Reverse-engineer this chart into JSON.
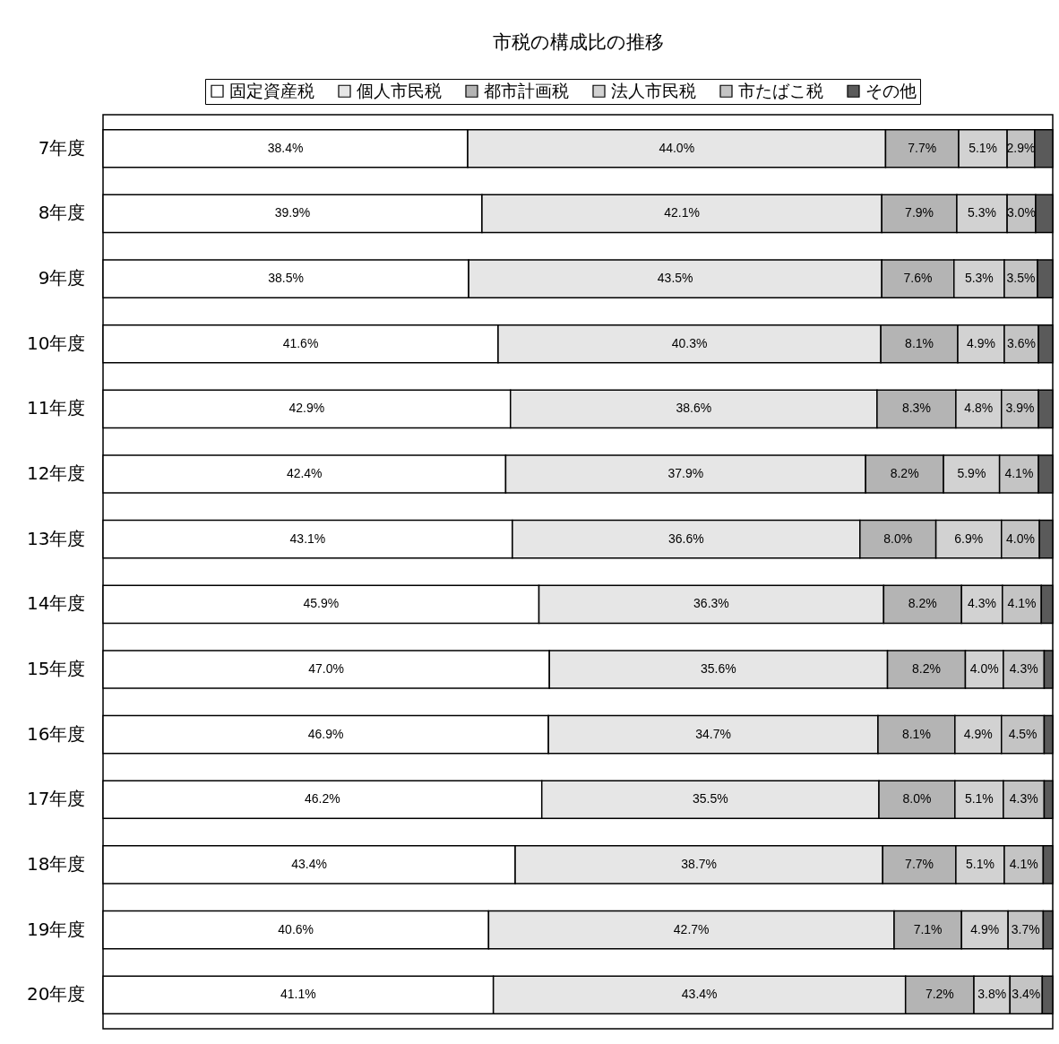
{
  "chart_data": {
    "type": "bar",
    "orientation": "horizontal",
    "stacked": true,
    "title": "市税の構成比の推移",
    "categories": [
      "7年度",
      "8年度",
      "9年度",
      "10年度",
      "11年度",
      "12年度",
      "13年度",
      "14年度",
      "15年度",
      "16年度",
      "17年度",
      "18年度",
      "19年度",
      "20年度"
    ],
    "series": [
      {
        "name": "固定資産税",
        "color": "#ffffff",
        "values": [
          38.4,
          39.9,
          38.5,
          41.6,
          42.9,
          42.4,
          43.1,
          45.9,
          47.0,
          46.9,
          46.2,
          43.4,
          40.6,
          41.1
        ],
        "value_labels": [
          "38.4%",
          "39.9%",
          "38.5%",
          "41.6%",
          "42.9%",
          "42.4%",
          "43.1%",
          "45.9%",
          "47.0%",
          "46.9%",
          "46.2%",
          "43.4%",
          "40.6%",
          "41.1%"
        ]
      },
      {
        "name": "個人市民税",
        "color": "#e6e6e6",
        "values": [
          44.0,
          42.1,
          43.5,
          40.3,
          38.6,
          37.9,
          36.6,
          36.3,
          35.6,
          34.7,
          35.5,
          38.7,
          42.7,
          43.4
        ],
        "value_labels": [
          "44.0%",
          "42.1%",
          "43.5%",
          "40.3%",
          "38.6%",
          "37.9%",
          "36.6%",
          "36.3%",
          "35.6%",
          "34.7%",
          "35.5%",
          "38.7%",
          "42.7%",
          "43.4%"
        ]
      },
      {
        "name": "都市計画税",
        "color": "#b4b4b4",
        "values": [
          7.7,
          7.9,
          7.6,
          8.1,
          8.3,
          8.2,
          8.0,
          8.2,
          8.2,
          8.1,
          8.0,
          7.7,
          7.1,
          7.2
        ],
        "value_labels": [
          "7.7%",
          "7.9%",
          "7.6%",
          "8.1%",
          "8.3%",
          "8.2%",
          "8.0%",
          "8.2%",
          "8.2%",
          "8.1%",
          "8.0%",
          "7.7%",
          "7.1%",
          "7.2%"
        ]
      },
      {
        "name": "法人市民税",
        "color": "#d2d2d2",
        "values": [
          5.1,
          5.3,
          5.3,
          4.9,
          4.8,
          5.9,
          6.9,
          4.3,
          4.0,
          4.9,
          5.1,
          5.1,
          4.9,
          3.8
        ],
        "value_labels": [
          "5.1%",
          "5.3%",
          "5.3%",
          "4.9%",
          "4.8%",
          "5.9%",
          "6.9%",
          "4.3%",
          "4.0%",
          "4.9%",
          "5.1%",
          "5.1%",
          "4.9%",
          "3.8%"
        ]
      },
      {
        "name": "市たばこ税",
        "color": "#c4c4c4",
        "values": [
          2.9,
          3.0,
          3.5,
          3.6,
          3.9,
          4.1,
          4.0,
          4.1,
          4.3,
          4.5,
          4.3,
          4.1,
          3.7,
          3.4
        ],
        "value_labels": [
          "2.9%",
          "3.0%",
          "3.5%",
          "3.6%",
          "3.9%",
          "4.1%",
          "4.0%",
          "4.1%",
          "4.3%",
          "4.5%",
          "4.3%",
          "4.1%",
          "3.7%",
          "3.4%"
        ]
      },
      {
        "name": "その他",
        "color": "#5a5a5a",
        "values": [
          1.9,
          1.8,
          1.6,
          1.5,
          1.5,
          1.5,
          1.4,
          1.2,
          0.9,
          0.9,
          0.9,
          1.0,
          1.0,
          1.1
        ]
      }
    ],
    "xlim": [
      0,
      100
    ],
    "tick_labels": "y",
    "legend": "top"
  }
}
